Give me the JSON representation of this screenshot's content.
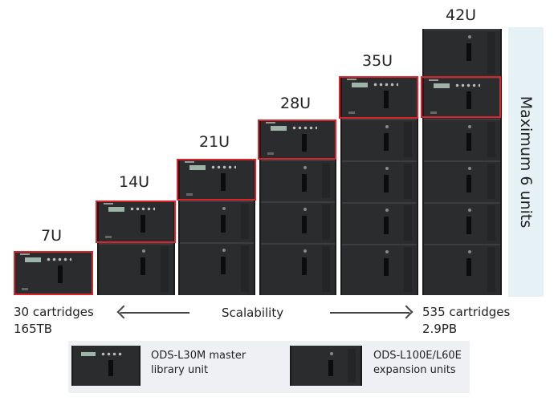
{
  "heights": [
    "7U",
    "14U",
    "21U",
    "28U",
    "35U",
    "42U"
  ],
  "side_label": "Maximum 6 units",
  "bottom": {
    "left_line1": "30 cartridges",
    "left_line2": "165TB",
    "center": "Scalability",
    "right_line1": "535 cartridges",
    "right_line2": "2.9PB"
  },
  "legend": {
    "master_line1": "ODS-L30M master",
    "master_line2": "library unit",
    "expansion_line1": "ODS-L100E/L60E",
    "expansion_line2": "expansion units"
  },
  "colors": {
    "highlight": "#d8242a",
    "band": "#e6f1f6",
    "unit": "#2b2c2e"
  }
}
